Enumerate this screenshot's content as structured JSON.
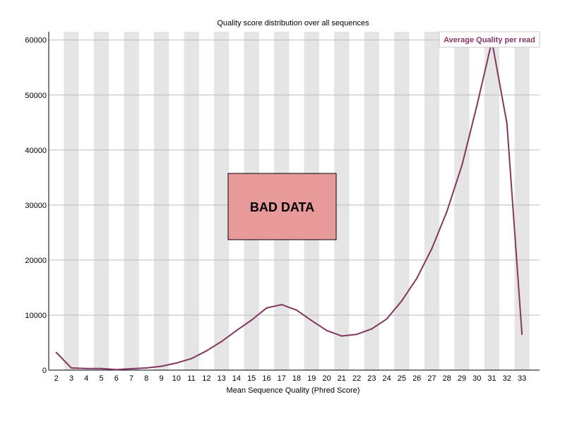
{
  "chart_data": {
    "type": "line",
    "title": "Quality score distribution over all sequences",
    "xlabel": "Mean Sequence Quality (Phred Score)",
    "ylabel": "",
    "categories": [
      "2",
      "3",
      "4",
      "5",
      "6",
      "7",
      "8",
      "9",
      "10",
      "11",
      "12",
      "13",
      "14",
      "15",
      "16",
      "17",
      "18",
      "19",
      "20",
      "21",
      "22",
      "23",
      "24",
      "25",
      "26",
      "27",
      "28",
      "29",
      "30",
      "31",
      "32",
      "33"
    ],
    "series": [
      {
        "name": "Average Quality per read",
        "values": [
          3200,
          400,
          300,
          300,
          100,
          250,
          400,
          700,
          1300,
          2100,
          3500,
          5200,
          7200,
          9100,
          11300,
          11900,
          10900,
          9000,
          7200,
          6200,
          6500,
          7500,
          9300,
          12600,
          16700,
          22100,
          28800,
          37200,
          48100,
          59800,
          44800,
          6500
        ]
      }
    ],
    "yticks": [
      0,
      10000,
      20000,
      30000,
      40000,
      50000,
      60000
    ],
    "ylim": [
      0,
      61500
    ],
    "grid": true,
    "legend": "top-right",
    "annotation": "BAD DATA",
    "colors": {
      "line": "#85375f",
      "legend_text": "#85375f",
      "stripe": "#e5e5e5",
      "gridline": "#bbbbbb",
      "badge_fill": "#e89a9a"
    }
  }
}
